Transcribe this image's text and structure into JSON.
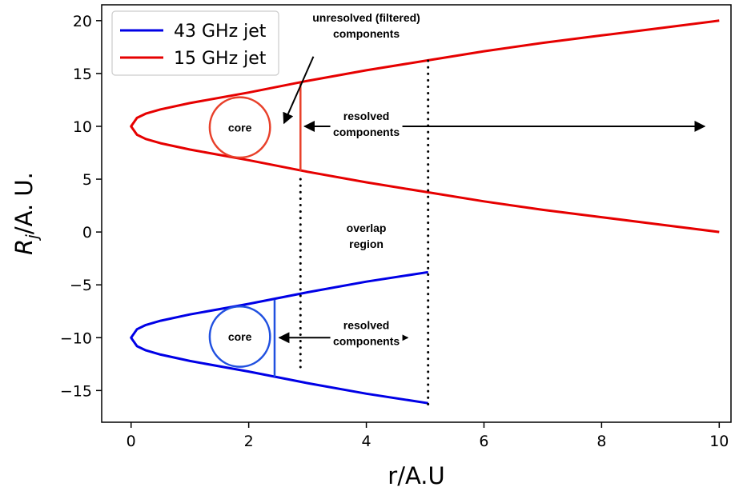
{
  "chart_data": {
    "type": "line",
    "xlabel": "r/A.U",
    "ylabel": "R_j/A. U.",
    "xlim": [
      -0.5,
      10.2
    ],
    "ylim": [
      -18.0,
      21.5
    ],
    "xticks": [
      0,
      2,
      4,
      6,
      8,
      10
    ],
    "yticks": [
      20,
      15,
      10,
      5,
      0,
      -5,
      -10,
      -15
    ],
    "xtick_labels": [
      "0",
      "2",
      "4",
      "6",
      "8",
      "10"
    ],
    "ytick_labels": [
      "20",
      "15",
      "10",
      "5",
      "0",
      "−5",
      "−10",
      "−15"
    ],
    "grid": false,
    "legend_position": "top-left",
    "colors": {
      "43GHz": "#0000e6",
      "15GHz": "#e60000",
      "core15": "#e8402a",
      "core43": "#2050e0",
      "axis": "#000000"
    },
    "series": [
      {
        "name": "15 GHz jet",
        "color": "#e60000",
        "apex": [
          0,
          10
        ],
        "upper": {
          "x": [
            0,
            0.1,
            0.25,
            0.5,
            1,
            2,
            3,
            4,
            5,
            6,
            7,
            8,
            9,
            10
          ],
          "y": [
            10,
            10.8,
            11.2,
            11.6,
            12.2,
            13.2,
            14.3,
            15.3,
            16.2,
            17.1,
            17.9,
            18.6,
            19.3,
            20.0
          ]
        },
        "lower": {
          "x": [
            0,
            0.1,
            0.25,
            0.5,
            1,
            2,
            3,
            4,
            5,
            6,
            7,
            8,
            9,
            10
          ],
          "y": [
            10,
            9.2,
            8.8,
            8.4,
            7.8,
            6.8,
            5.7,
            4.7,
            3.8,
            2.9,
            2.1,
            1.4,
            0.7,
            0.0
          ]
        }
      },
      {
        "name": "43 GHz jet",
        "color": "#0000e6",
        "apex": [
          0,
          -10
        ],
        "upper": {
          "x": [
            0,
            0.1,
            0.25,
            0.5,
            1,
            2,
            3,
            4,
            5.05
          ],
          "y": [
            -10,
            -9.2,
            -8.8,
            -8.4,
            -7.8,
            -6.8,
            -5.7,
            -4.7,
            -3.8
          ]
        },
        "lower": {
          "x": [
            0,
            0.1,
            0.25,
            0.5,
            1,
            2,
            3,
            4,
            5.05
          ],
          "y": [
            -10,
            -10.8,
            -11.2,
            -11.6,
            -12.2,
            -13.2,
            -14.3,
            -15.3,
            -16.2
          ]
        }
      }
    ],
    "cores": [
      {
        "label": "core",
        "cx": 1.85,
        "cy": 9.9,
        "r": 2.85,
        "color": "#e8402a"
      },
      {
        "label": "core",
        "cx": 1.85,
        "cy": -9.9,
        "r": 2.85,
        "color": "#2050e0"
      }
    ],
    "cut_lines": [
      {
        "x": 2.88,
        "y1": 5.8,
        "y2": 14.1,
        "color": "#e8402a"
      },
      {
        "x": 2.44,
        "y1": -13.7,
        "y2": -6.4,
        "color": "#2050e0"
      }
    ],
    "dotted_lines": [
      {
        "x": 2.88,
        "y1": 5.0,
        "y2": -13.2
      },
      {
        "x": 5.05,
        "y1": 16.2,
        "y2": -16.5
      }
    ],
    "arrows": [
      {
        "from": [
          2.95,
          10
        ],
        "to": [
          9.75,
          10
        ],
        "heads": "both"
      },
      {
        "from": [
          2.52,
          -10
        ],
        "to": [
          4.7,
          -10
        ],
        "heads": "both"
      },
      {
        "from": [
          3.1,
          16.6
        ],
        "to": [
          2.6,
          10.3
        ],
        "heads": "end"
      }
    ],
    "annotations": [
      {
        "lines": [
          "unresolved (filtered)",
          "components"
        ],
        "x": 4.0,
        "y": 19.9
      },
      {
        "lines": [
          "resolved",
          "components"
        ],
        "x": 4.0,
        "y": 10.6
      },
      {
        "lines": [
          "overlap",
          "region"
        ],
        "x": 4.0,
        "y": 0.0
      },
      {
        "lines": [
          "resolved",
          "components"
        ],
        "x": 4.0,
        "y": -9.2
      }
    ]
  },
  "legend": {
    "items": [
      {
        "label": "43 GHz jet",
        "color": "#0000e6"
      },
      {
        "label": "15 GHz jet",
        "color": "#e60000"
      }
    ]
  }
}
